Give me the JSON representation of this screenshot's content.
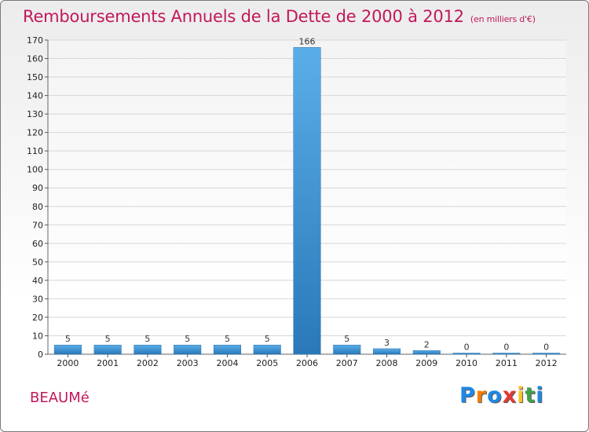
{
  "title": "Remboursements Annuels de la Dette de 2000 à 2012",
  "unit": "(en milliers d'€)",
  "commune": "BEAUMé",
  "logo": {
    "text": "Proxiti",
    "letter_colors": [
      "#1e88e5",
      "#f57c00",
      "#1e88e5",
      "#e53935",
      "#fbc02d",
      "#43a047",
      "#1e88e5"
    ]
  },
  "colors": {
    "bar_light": "#5aaee8",
    "bar_dark": "#2a78b8",
    "title": "#c2185b",
    "grid": "#d6d6d6"
  },
  "chart_data": {
    "type": "bar",
    "title": "Remboursements Annuels de la Dette de 2000 à 2012",
    "xlabel": "",
    "ylabel": "en milliers d'€",
    "categories": [
      "2000",
      "2001",
      "2002",
      "2003",
      "2004",
      "2005",
      "2006",
      "2007",
      "2008",
      "2009",
      "2010",
      "2011",
      "2012"
    ],
    "values": [
      5,
      5,
      5,
      5,
      5,
      5,
      166,
      5,
      3,
      2,
      0,
      0,
      0
    ],
    "ylim": [
      0,
      170
    ],
    "yticks": [
      0,
      10,
      20,
      30,
      40,
      50,
      60,
      70,
      80,
      90,
      100,
      110,
      120,
      130,
      140,
      150,
      160,
      170
    ],
    "grid": true
  }
}
